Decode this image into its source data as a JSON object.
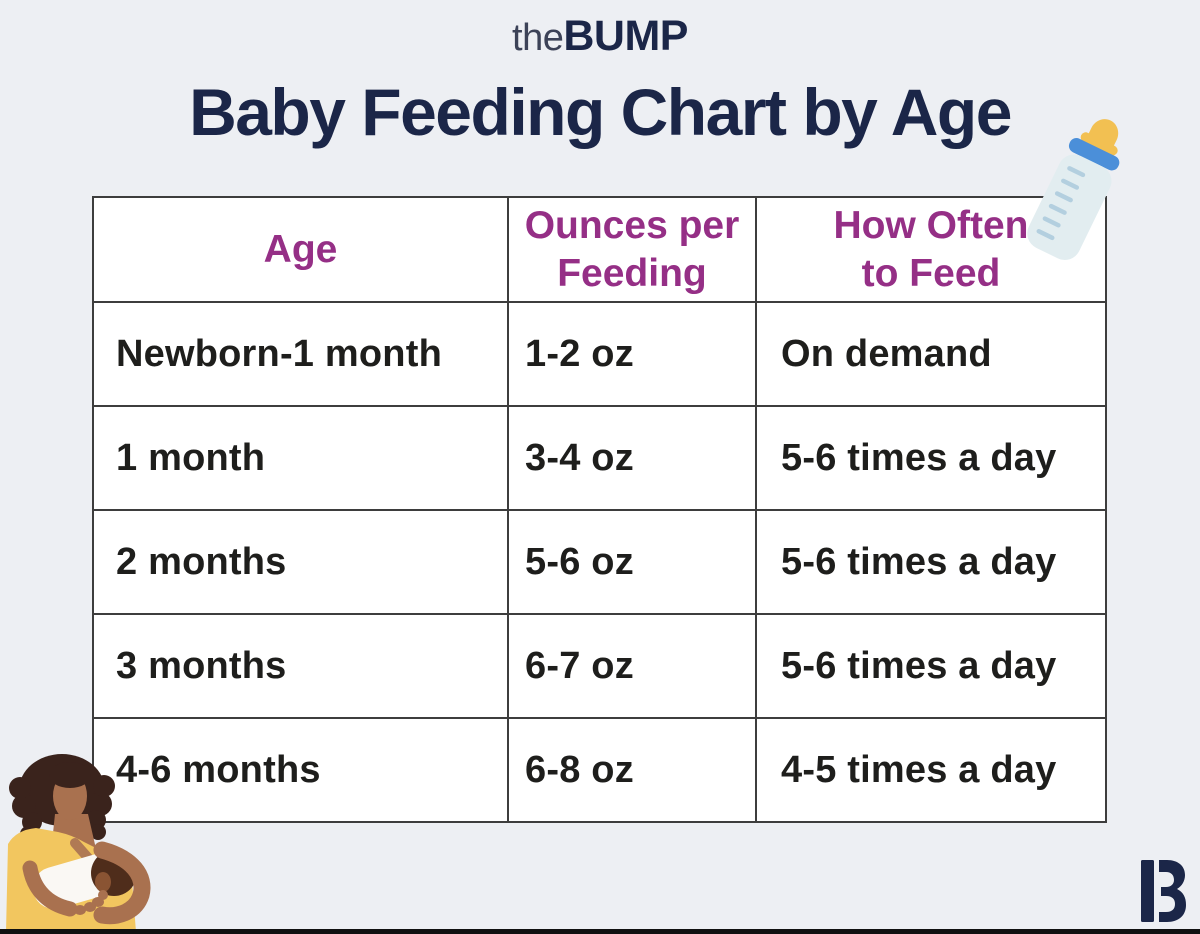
{
  "page": {
    "background": "#edeff3",
    "bottom_bar_color": "#101010"
  },
  "header": {
    "logo": {
      "the": "the",
      "bump": "BUMP",
      "color": "#1b2648"
    },
    "title": {
      "text": "Baby Feeding Chart by Age",
      "color": "#1b2648"
    }
  },
  "table": {
    "border_color": "#3d3d3d",
    "cell_background": "#ffffff",
    "header_text_color": "#952f86",
    "body_text_color": "#1e1e1c",
    "columns": [
      {
        "label": "Age"
      },
      {
        "label": "Ounces per\nFeeding"
      },
      {
        "label": "How Often\nto Feed"
      }
    ],
    "rows": [
      {
        "age": "Newborn-1 month",
        "ounces": "1-2 oz",
        "frequency": "On demand"
      },
      {
        "age": "1 month",
        "ounces": "3-4 oz",
        "frequency": "5-6 times a day"
      },
      {
        "age": "2 months",
        "ounces": "5-6 oz",
        "frequency": "5-6 times a day"
      },
      {
        "age": "3 months",
        "ounces": "6-7 oz",
        "frequency": "5-6 times a day"
      },
      {
        "age": "4-6 months",
        "ounces": "6-8 oz",
        "frequency": "4-5 times a day"
      }
    ]
  },
  "chart_data": {
    "type": "table",
    "title": "Baby Feeding Chart by Age",
    "columns": [
      "Age",
      "Ounces per Feeding",
      "How Often to Feed"
    ],
    "rows": [
      [
        "Newborn-1 month",
        "1-2 oz",
        "On demand"
      ],
      [
        "1 month",
        "3-4 oz",
        "5-6 times a day"
      ],
      [
        "2 months",
        "5-6 oz",
        "5-6 times a day"
      ],
      [
        "3 months",
        "6-7 oz",
        "5-6 times a day"
      ],
      [
        "4-6 months",
        "6-8 oz",
        "4-5 times a day"
      ]
    ]
  },
  "decorations": {
    "bottle_icon": {
      "name": "baby-bottle-icon",
      "nipple_color": "#f2c052",
      "ring_color": "#4b8fd9",
      "body_color": "#e2edf0",
      "tick_color": "#b3cfdf"
    },
    "mother_illustration": {
      "name": "mother-nursing-baby-illustration",
      "hair_color": "#3a231c",
      "skin_color": "#a9714f",
      "dress_color": "#f2c65f",
      "baby_outfit_color": "#faf8f4",
      "baby_hair_color": "#4f2d1b",
      "baby_skin_color": "#b07a54"
    },
    "bottom_logo_mark": {
      "name": "bump-b-logo-mark",
      "color": "#1b2648"
    }
  }
}
